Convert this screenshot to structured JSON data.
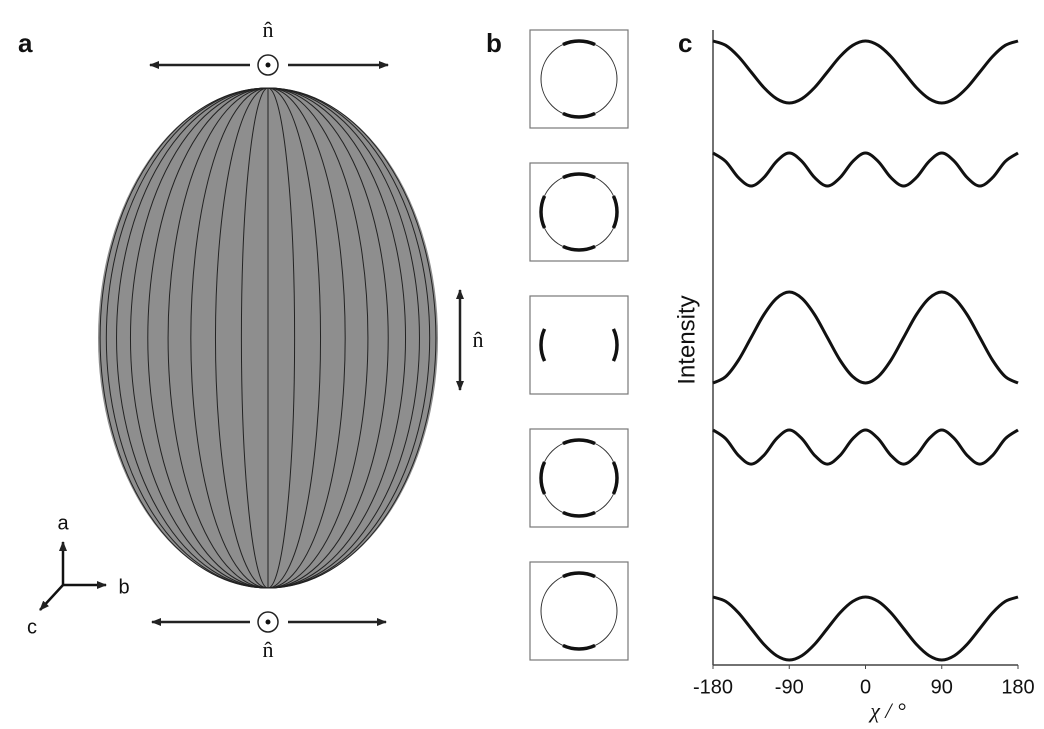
{
  "panel_labels": [
    "a",
    "b",
    "c"
  ],
  "panel_a": {
    "director_labels": [
      "n̂",
      "n̂",
      "n̂"
    ],
    "axes_labels": [
      "a",
      "b",
      "c"
    ]
  },
  "chart_data": {
    "type": "line",
    "xlabel": "χ / °",
    "ylabel": "Intensity",
    "x": [
      -180,
      -165,
      -150,
      -135,
      -120,
      -105,
      -90,
      -75,
      -60,
      -45,
      -30,
      -15,
      0,
      15,
      30,
      45,
      60,
      75,
      90,
      105,
      120,
      135,
      150,
      165,
      180
    ],
    "xlim": [
      -180,
      180
    ],
    "xticks": [
      -180,
      -90,
      0,
      90,
      180
    ],
    "ylim": [
      0,
      1
    ],
    "series": [
      {
        "color": "#111111",
        "values": [
          1,
          0.93,
          0.75,
          0.5,
          0.25,
          0.07,
          0,
          0.07,
          0.25,
          0.5,
          0.75,
          0.93,
          1,
          0.93,
          0.75,
          0.5,
          0.25,
          0.07,
          0,
          0.07,
          0.25,
          0.5,
          0.75,
          0.93,
          1
        ]
      },
      {
        "color": "#111111",
        "values": [
          1,
          0.86,
          0.59,
          0.45,
          0.59,
          0.86,
          1,
          0.86,
          0.59,
          0.45,
          0.59,
          0.86,
          1,
          0.86,
          0.59,
          0.45,
          0.59,
          0.86,
          1,
          0.86,
          0.59,
          0.45,
          0.59,
          0.86,
          1
        ]
      },
      {
        "color": "#111111",
        "values": [
          0,
          0.07,
          0.25,
          0.5,
          0.75,
          0.93,
          1,
          0.93,
          0.75,
          0.5,
          0.25,
          0.07,
          0,
          0.07,
          0.25,
          0.5,
          0.75,
          0.93,
          1,
          0.93,
          0.75,
          0.5,
          0.25,
          0.07,
          0
        ]
      },
      {
        "color": "#111111",
        "values": [
          1,
          0.86,
          0.59,
          0.45,
          0.59,
          0.86,
          1,
          0.86,
          0.59,
          0.45,
          0.59,
          0.86,
          1,
          0.86,
          0.59,
          0.45,
          0.59,
          0.86,
          1,
          0.86,
          0.59,
          0.45,
          0.59,
          0.86,
          1
        ]
      },
      {
        "color": "#111111",
        "values": [
          1,
          0.93,
          0.75,
          0.5,
          0.25,
          0.07,
          0,
          0.07,
          0.25,
          0.5,
          0.75,
          0.93,
          1,
          0.93,
          0.75,
          0.5,
          0.25,
          0.07,
          0,
          0.07,
          0.25,
          0.5,
          0.75,
          0.93,
          1
        ]
      }
    ]
  }
}
